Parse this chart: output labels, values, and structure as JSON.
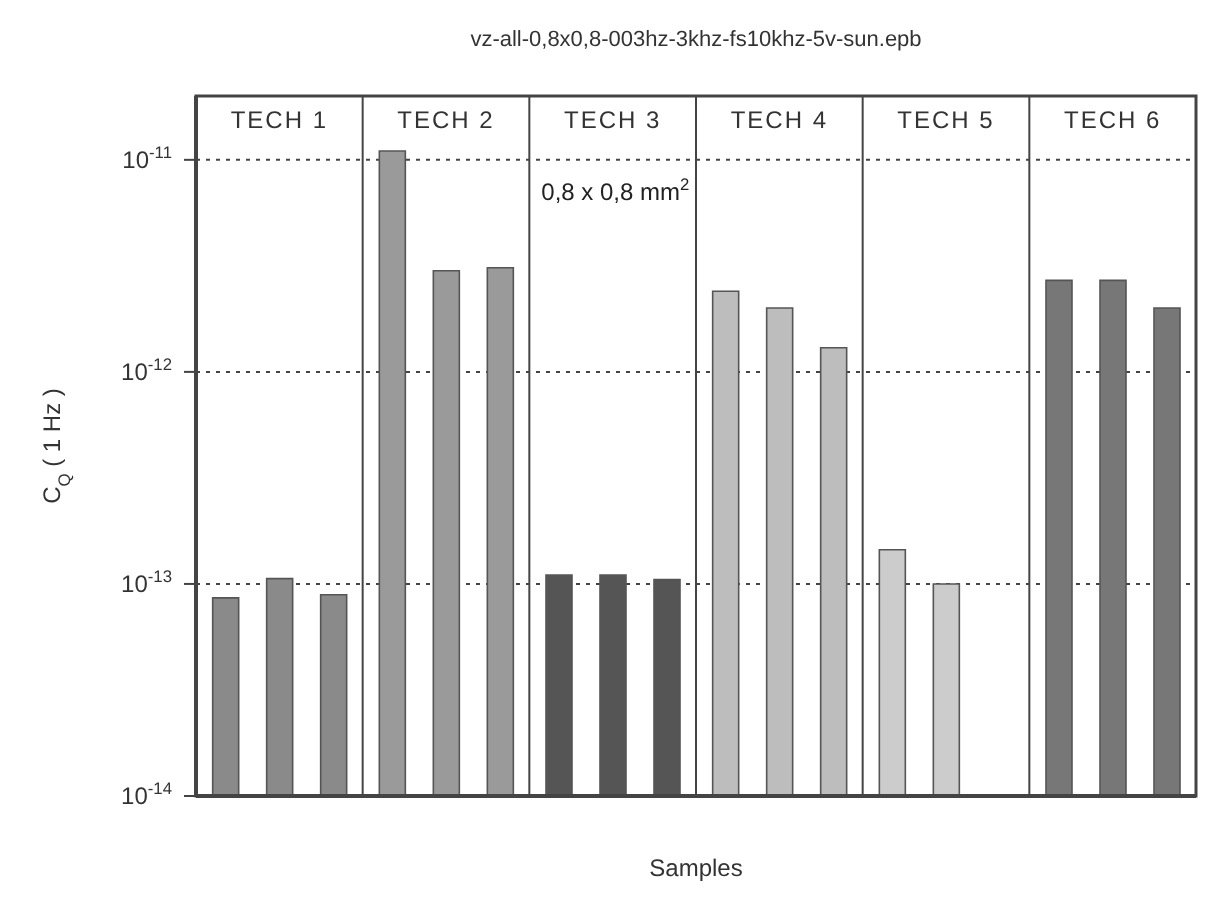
{
  "chart_data": {
    "type": "bar",
    "title": "vz-all-0,8x0,8-003hz-3khz-fs10khz-5v-sun.epb",
    "xlabel": "Samples",
    "ylabel": "C$_{Q}$ ( 1 Hz )",
    "categories": [
      "TECH 1",
      "TECH 2",
      "TECH 3",
      "TECH 4",
      "TECH 5",
      "TECH 6"
    ],
    "series": [
      {
        "colors": [
          "#8a8a8a",
          "#9a9a9a",
          "#555555",
          "#bdbdbd",
          "#cccccc",
          "#777777"
        ],
        "values": [
          8.6e-14,
          1.1e-11,
          1.1e-13,
          2.4e-12,
          1.45e-13,
          2.7e-12
        ]
      },
      {
        "colors": [
          "#8a8a8a",
          "#9a9a9a",
          "#555555",
          "#bdbdbd",
          "#cccccc",
          "#777777"
        ],
        "values": [
          1.06e-13,
          3e-12,
          1.1e-13,
          2e-12,
          1e-13,
          2.7e-12
        ]
      },
      {
        "colors": [
          "#8a8a8a",
          "#9a9a9a",
          "#555555",
          "#bdbdbd",
          "#cccccc",
          "#777777"
        ],
        "values": [
          8.9e-14,
          3.1e-12,
          1.05e-13,
          1.3e-12,
          null,
          2e-12
        ]
      }
    ],
    "log": "y",
    "ylim": [
      1e-14,
      2e-11
    ],
    "yticks": [
      {
        "value": 1e-14,
        "label": "10$^{-14}$"
      },
      {
        "value": 1e-13,
        "label": "10$^{-13}$"
      },
      {
        "value": 1e-12,
        "label": "10$^{-12}$"
      },
      {
        "value": 1e-11,
        "label": "10$^{-11}$"
      }
    ],
    "grid": "y",
    "legend": false,
    "annotations": [
      "0,8 x 0,8 mm$^{2}$"
    ]
  }
}
